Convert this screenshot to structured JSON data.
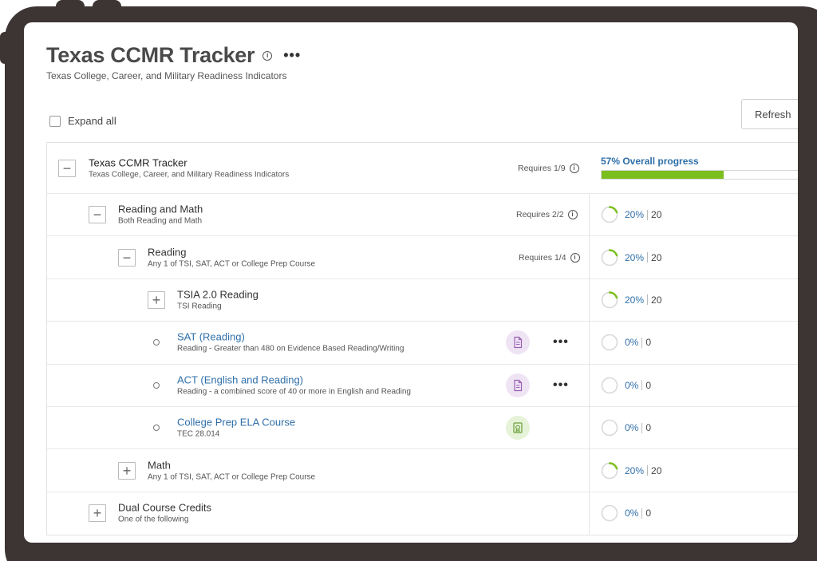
{
  "header": {
    "title": "Texas CCMR Tracker",
    "subtitle": "Texas College, Career, and Military Readiness Indicators"
  },
  "controls": {
    "expand_all_label": "Expand all",
    "refresh_label": "Refresh"
  },
  "colors": {
    "accent_blue": "#2f6fa8",
    "progress_green": "#7bbf1e",
    "bezel": "#3d3434"
  },
  "tracker": {
    "root": {
      "title": "Texas CCMR Tracker",
      "description": "Texas College, Career, and Military Readiness Indicators",
      "requires": "Requires 1/9",
      "overall_label": "57% Overall progress",
      "overall_percent": 57
    },
    "rows": [
      {
        "title": "Reading and Math",
        "description": "Both Reading and Math",
        "requires": "Requires 2/2",
        "percent_label": "20%",
        "points": "20",
        "percent": 20
      },
      {
        "title": "Reading",
        "description": "Any 1 of TSI, SAT, ACT or College Prep Course",
        "requires": "Requires 1/4",
        "percent_label": "20%",
        "points": "20",
        "percent": 20
      },
      {
        "title": "TSIA 2.0 Reading",
        "description": "TSI Reading",
        "percent_label": "20%",
        "points": "20",
        "percent": 20
      },
      {
        "title": "SAT (Reading)",
        "description": "Reading - Greater than 480 on Evidence Based Reading/Writing",
        "badge_icon": "document-icon",
        "percent_label": "0%",
        "points": "0",
        "percent": 0
      },
      {
        "title": "ACT (English and Reading)",
        "description": "Reading - a combined score of 40 or more in English and Reading",
        "badge_icon": "document-icon",
        "percent_label": "0%",
        "points": "0",
        "percent": 0
      },
      {
        "title": "College Prep ELA Course",
        "description": "TEC 28.014",
        "badge_icon": "certificate-icon",
        "percent_label": "0%",
        "points": "0",
        "percent": 0
      },
      {
        "title": "Math",
        "description": "Any 1 of TSI, SAT, ACT or College Prep Course",
        "percent_label": "20%",
        "points": "20",
        "percent": 20
      },
      {
        "title": "Dual Course Credits",
        "description": "One of the following",
        "percent_label": "0%",
        "points": "0",
        "percent": 0
      }
    ]
  }
}
